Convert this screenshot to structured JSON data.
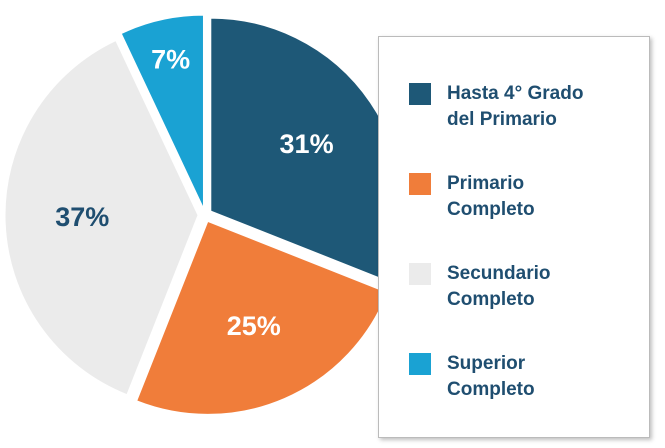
{
  "chart_data": {
    "type": "pie",
    "categories": [
      "Hasta 4° Grado del Primario",
      "Primario Completo",
      "Secundario Completo",
      "Superior Completo"
    ],
    "values": [
      31,
      25,
      37,
      7
    ],
    "value_labels": [
      "31%",
      "25%",
      "37%",
      "7%"
    ],
    "colors": [
      "#1e5877",
      "#f07d3a",
      "#ebebeb",
      "#1aa2d3"
    ],
    "legend": "right"
  }
}
